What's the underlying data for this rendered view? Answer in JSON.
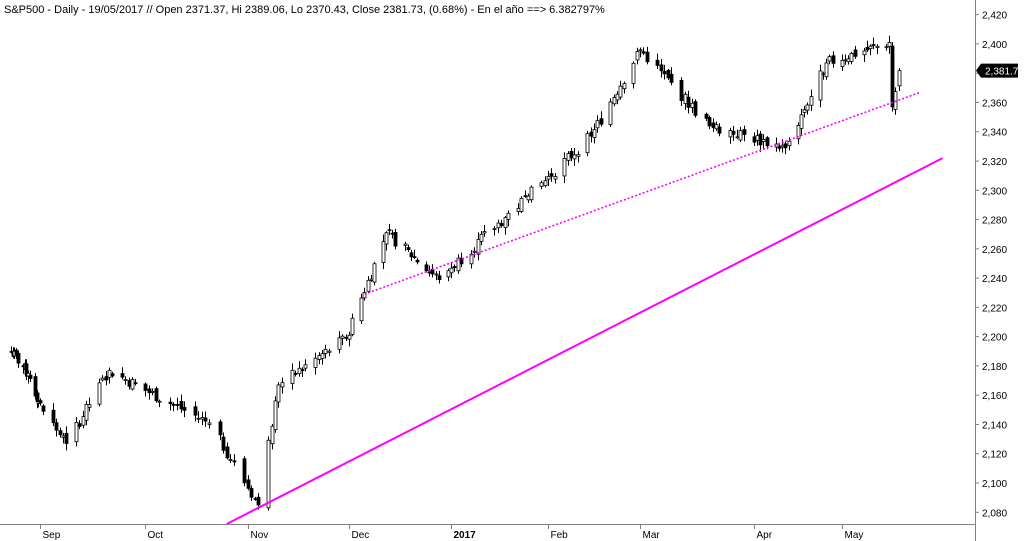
{
  "chart_data": {
    "type": "candlestick",
    "title": "S&P500 - Daily - 19/05/2017 // Open 2371.37, Hi 2389.06, Lo 2370.43, Close 2381.73, (0.68%) - En el año ==> 6.382797%",
    "last_price_label": "2,381.73",
    "last_price": 2381.73,
    "ylim": [
      2072,
      2430
    ],
    "y_ticks": [
      {
        "value": 2080,
        "label": "2,080"
      },
      {
        "value": 2100,
        "label": "2,100"
      },
      {
        "value": 2120,
        "label": "2,120"
      },
      {
        "value": 2140,
        "label": "2,140"
      },
      {
        "value": 2160,
        "label": "2,160"
      },
      {
        "value": 2180,
        "label": "2,180"
      },
      {
        "value": 2200,
        "label": "2,200"
      },
      {
        "value": 2220,
        "label": "2,220"
      },
      {
        "value": 2240,
        "label": "2,240"
      },
      {
        "value": 2260,
        "label": "2,260"
      },
      {
        "value": 2280,
        "label": "2,280"
      },
      {
        "value": 2300,
        "label": "2,300"
      },
      {
        "value": 2320,
        "label": "2,320"
      },
      {
        "value": 2340,
        "label": "2,340"
      },
      {
        "value": 2360,
        "label": "2,360"
      },
      {
        "value": 2380,
        "label": "2,380"
      },
      {
        "value": 2400,
        "label": "2,400"
      },
      {
        "value": 2420,
        "label": "2,420"
      }
    ],
    "x_ticks": [
      {
        "label": "Sep",
        "date": "2016-09-01",
        "bold": false
      },
      {
        "label": "Oct",
        "date": "2016-10-03",
        "bold": false
      },
      {
        "label": "Nov",
        "date": "2016-11-01",
        "bold": false
      },
      {
        "label": "Dec",
        "date": "2016-12-01",
        "bold": false
      },
      {
        "label": "2017",
        "date": "2017-01-03",
        "bold": true
      },
      {
        "label": "Feb",
        "date": "2017-02-01",
        "bold": false
      },
      {
        "label": "Mar",
        "date": "2017-03-01",
        "bold": false
      },
      {
        "label": "Apr",
        "date": "2017-04-03",
        "bold": false
      },
      {
        "label": "May",
        "date": "2017-05-01",
        "bold": false
      }
    ],
    "key_closes": [
      {
        "date": "2016-08-15",
        "close": 2190
      },
      {
        "date": "2016-08-25",
        "close": 2175
      },
      {
        "date": "2016-09-09",
        "close": 2127
      },
      {
        "date": "2016-09-22",
        "close": 2177
      },
      {
        "date": "2016-10-21",
        "close": 2141
      },
      {
        "date": "2016-11-04",
        "close": 2085
      },
      {
        "date": "2016-11-10",
        "close": 2167
      },
      {
        "date": "2016-11-30",
        "close": 2199
      },
      {
        "date": "2016-12-13",
        "close": 2271
      },
      {
        "date": "2016-12-30",
        "close": 2239
      },
      {
        "date": "2017-01-26",
        "close": 2296
      },
      {
        "date": "2017-02-14",
        "close": 2337
      },
      {
        "date": "2017-03-01",
        "close": 2396
      },
      {
        "date": "2017-03-21",
        "close": 2344
      },
      {
        "date": "2017-04-13",
        "close": 2329
      },
      {
        "date": "2017-04-26",
        "close": 2387
      },
      {
        "date": "2017-05-16",
        "close": 2401
      },
      {
        "date": "2017-05-17",
        "close": 2357
      },
      {
        "date": "2017-05-19",
        "close": 2381.73
      }
    ],
    "trend_lines": [
      {
        "style": "solid",
        "color": "#ff00ff",
        "from": {
          "date": "2016-10-26",
          "value": 2072
        },
        "to": {
          "date": "2017-06-02",
          "value": 2322
        }
      },
      {
        "style": "dotted",
        "color": "#ff00ff",
        "from": {
          "date": "2016-12-06",
          "value": 2229
        },
        "to": {
          "date": "2017-05-26",
          "value": 2367
        }
      }
    ],
    "grid": false,
    "colors": {
      "up": "#ffffff",
      "down": "#000000",
      "trend": "#ff00ff",
      "price_box": "#000000"
    }
  }
}
